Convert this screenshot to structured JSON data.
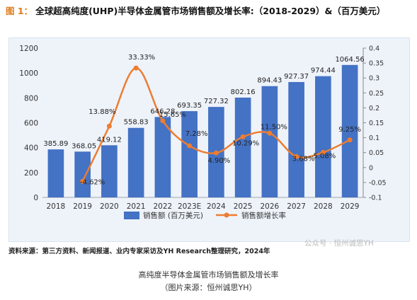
{
  "header": {
    "fig_label": "图 1：",
    "title": "全球超高纯度(UHP)半导体金属管市场销售额及增长率:（2018-2029）&（百万美元）"
  },
  "chart_data": {
    "type": "bar",
    "categories": [
      "2018",
      "2019",
      "2020",
      "2021",
      "2022",
      "2023E",
      "2024",
      "2025",
      "2026",
      "2027",
      "2028",
      "2029"
    ],
    "series": [
      {
        "name": "销售额 (百万美元)",
        "type": "bar",
        "axis": "left",
        "color": "#4472c4",
        "values": [
          385.89,
          368.05,
          419.12,
          558.83,
          646.28,
          693.35,
          727.32,
          802.16,
          894.43,
          927.37,
          974.44,
          1064.56
        ],
        "labels": [
          "385.89",
          "368.05",
          "419.12",
          "558.83",
          "646.28",
          "693.35",
          "727.32",
          "802.16",
          "894.43",
          "927.37",
          "974.44",
          "1064.56"
        ]
      },
      {
        "name": "销售额增长率",
        "type": "line",
        "axis": "right",
        "color": "#ed7d31",
        "values": [
          null,
          -0.0462,
          0.1388,
          0.3333,
          0.1565,
          0.0728,
          0.049,
          0.1029,
          0.115,
          0.0368,
          0.0508,
          0.0925
        ],
        "labels": [
          "",
          "-4.62%",
          "13.88%",
          "33.33%",
          "15.65%",
          "7.28%",
          "4.90%",
          "10.29%",
          "11.50%",
          "3.68%",
          "5.08%",
          "9.25%"
        ]
      }
    ],
    "y_left": {
      "min": 0,
      "max": 1200,
      "ticks": [
        "0",
        "200",
        "400",
        "600",
        "800",
        "1000",
        "1200"
      ]
    },
    "y_right": {
      "min": -0.1,
      "max": 0.4,
      "ticks": [
        "-0.1",
        "-0.05",
        "0",
        "0.05",
        "0.1",
        "0.15",
        "0.2",
        "0.25",
        "0.3",
        "0.35",
        "0.4"
      ]
    },
    "legend_position": "bottom",
    "grid": false
  },
  "source_text": "资料来源：第三方资料、新闻报道、业内专家采访及YH Research整理研究，2024年",
  "watermark": "公众号 · 恒州诚思YH",
  "caption_line1": "高纯度半导体金属管市场销售额及增长率",
  "caption_line2": "（图片来源：恒州诚思YH）"
}
